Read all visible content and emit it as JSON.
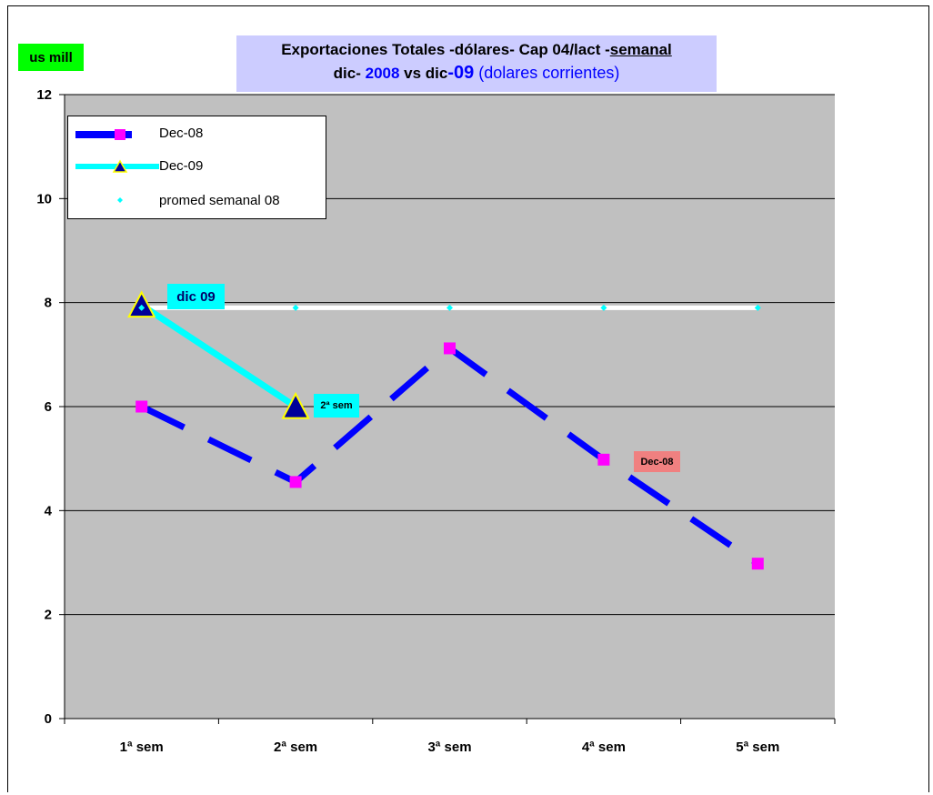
{
  "unit_label": "us mill",
  "title": {
    "line1_prefix": "Exportaciones Totales -dólares- Cap 04/lact -",
    "line1_underlined": "semanal",
    "line2_a": "dic- ",
    "line2_b": "2008",
    "line2_c": " vs   dic",
    "line2_d": "-09",
    "line2_e": "  (dolares corrientes)"
  },
  "colors": {
    "plot_bg": "#c0c0c0",
    "dec08_line": "#0000ff",
    "dec08_marker": "#ff00ff",
    "dec09_line": "#00ffff",
    "dec09_marker": "#000099",
    "avg_line": "#ffffff",
    "avg_marker": "#00ffff"
  },
  "legend": {
    "items": [
      "Dec-08",
      "Dec-09",
      "promed semanal 08"
    ]
  },
  "annotations": {
    "dic09": "dic 09",
    "sem2": "2ª sem",
    "dec08": "Dec-08"
  },
  "chart_data": {
    "type": "line",
    "categories": [
      "1ª sem",
      "2ª sem",
      "3ª sem",
      "4ª sem",
      "5ª sem"
    ],
    "ylabel": "us mill",
    "ylim": [
      0,
      12
    ],
    "yticks": [
      0,
      2,
      4,
      6,
      8,
      10,
      12
    ],
    "grid": true,
    "legend_position": "top-left",
    "series": [
      {
        "name": "Dec-08",
        "values": [
          6.0,
          4.55,
          7.12,
          4.98,
          2.98
        ]
      },
      {
        "name": "Dec-09",
        "values": [
          7.95,
          6.0,
          null,
          null,
          null
        ]
      },
      {
        "name": "promed semanal 08",
        "values": [
          7.9,
          7.9,
          7.9,
          7.9,
          7.9
        ]
      }
    ]
  }
}
